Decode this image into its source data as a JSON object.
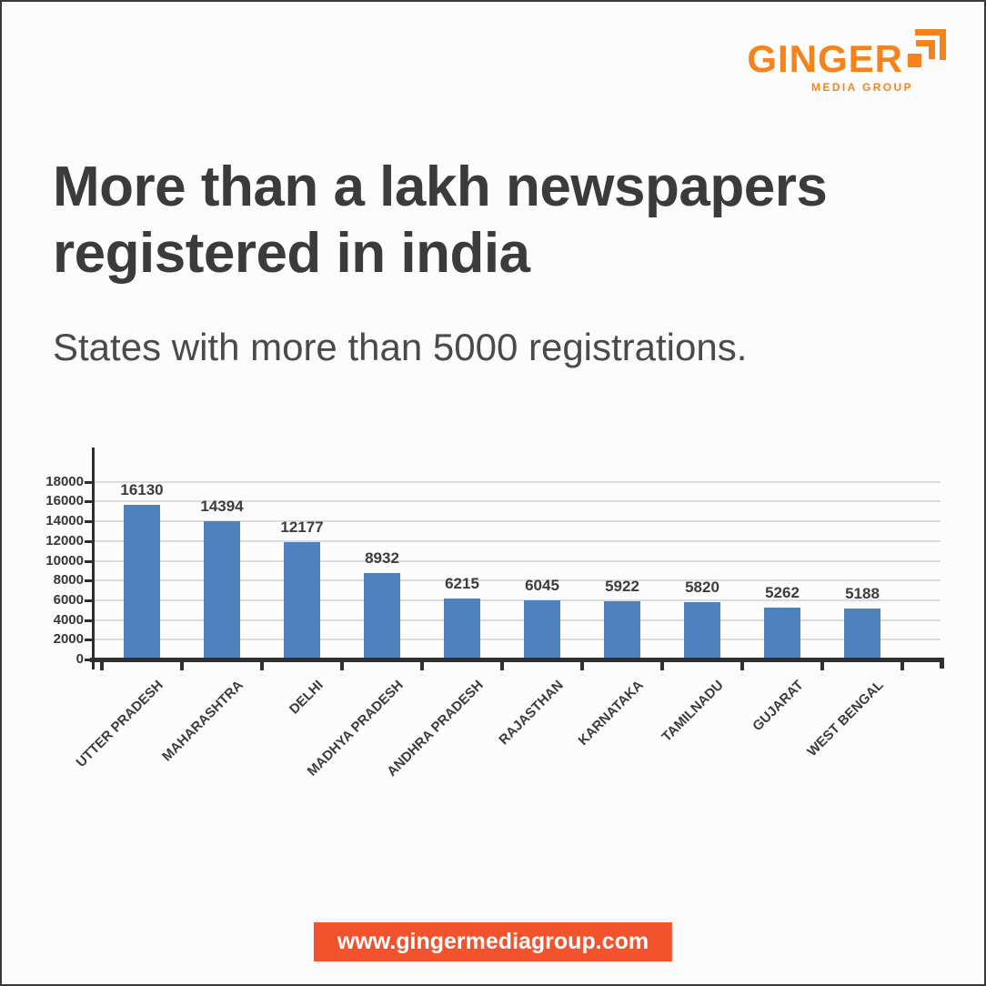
{
  "logo": {
    "text": "GINGER",
    "tagline": "MEDIA GROUP",
    "color": "#f6821d"
  },
  "title": {
    "line1": "More than a lakh newspapers",
    "line2": "registered in india"
  },
  "subtitle": "States with more than 5000 registrations.",
  "chart_data": {
    "type": "bar",
    "title": "",
    "xlabel": "",
    "ylabel": "",
    "categories": [
      "UTTER PRADESH",
      "MAHARASHTRA",
      "DELHI",
      "MADHYA PRADESH",
      "ANDHRA PRADESH",
      "RAJASTHAN",
      "KARNATAKA",
      "TAMILNADU",
      "GUJARAT",
      "WEST BENGAL"
    ],
    "values": [
      16130,
      14394,
      12177,
      8932,
      6215,
      6045,
      5922,
      5820,
      5262,
      5188
    ],
    "ylim": [
      0,
      18000
    ],
    "yticks": [
      0,
      2000,
      4000,
      6000,
      8000,
      10000,
      12000,
      14000,
      16000,
      18000
    ],
    "grid": true,
    "legend": false,
    "value_labels": true,
    "bar_color": "#4e81bd",
    "gridline_color": "#dcdcdc",
    "axis_color": "#2f2f2f"
  },
  "footer": {
    "url": "www.gingermediagroup.com",
    "bg_color": "#f2532d"
  }
}
